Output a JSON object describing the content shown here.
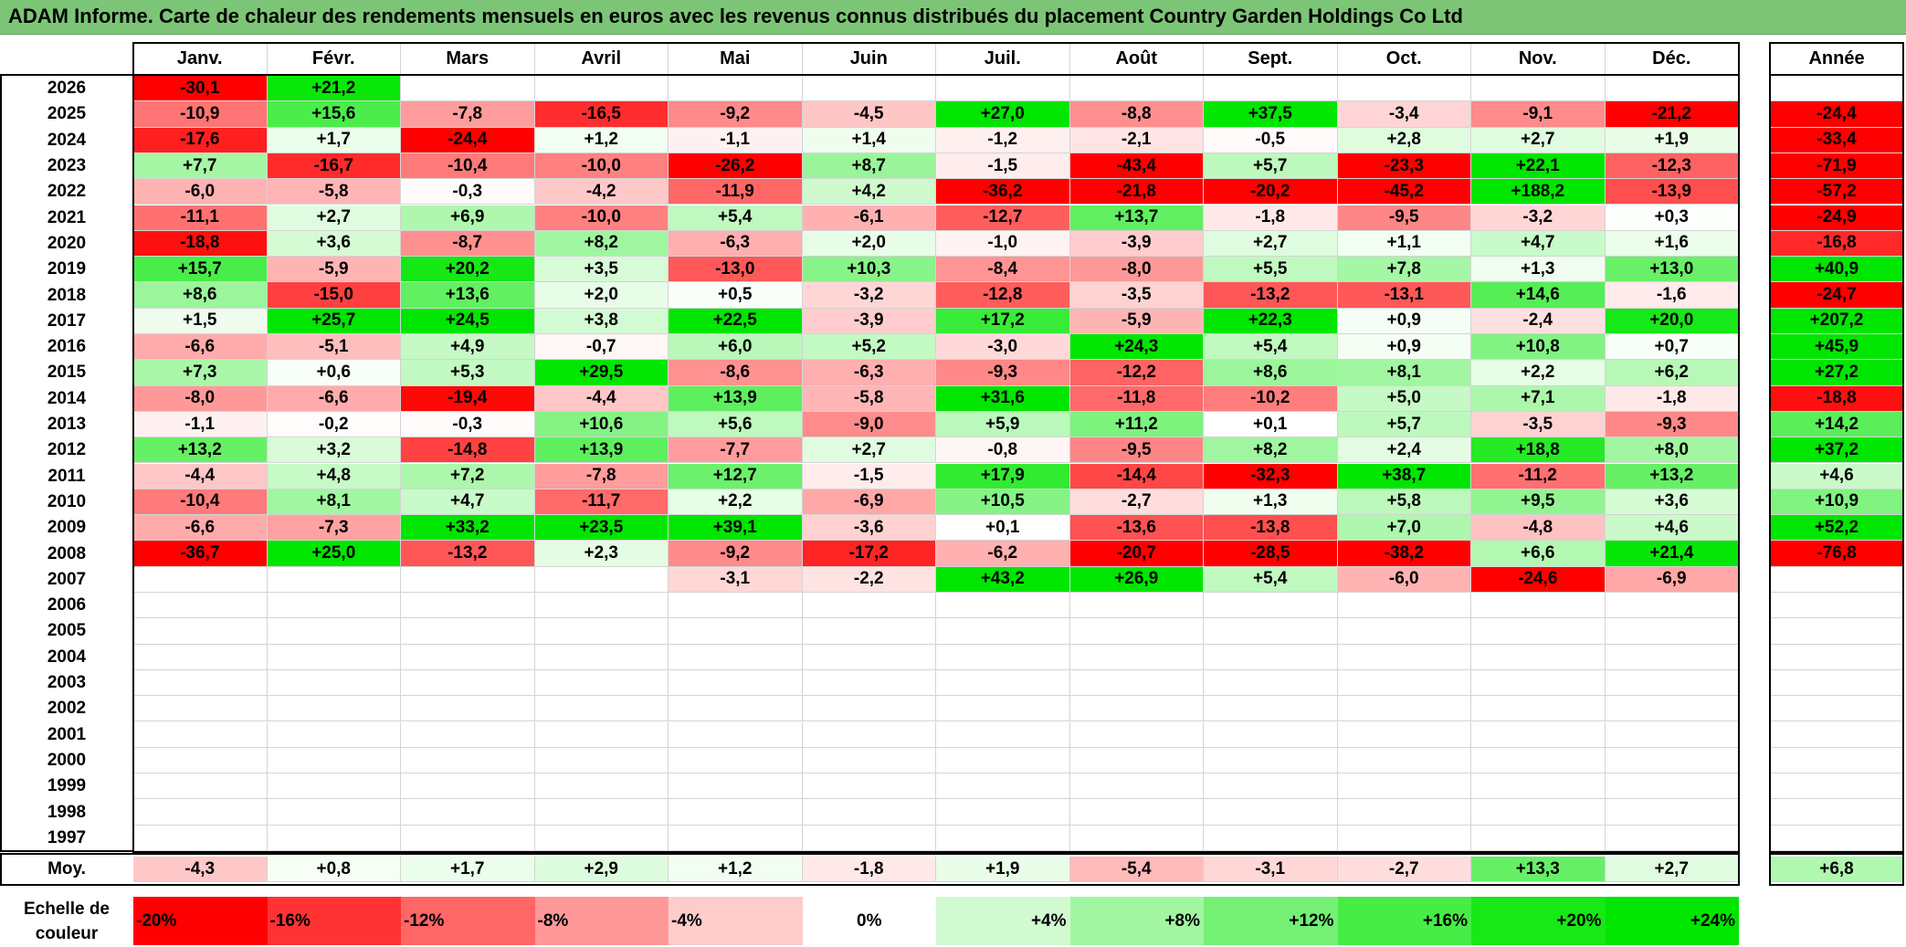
{
  "title": "ADAM Informe. Carte de chaleur des rendements mensuels en euros avec les revenus connus distribués du placement Country Garden Holdings Co Ltd",
  "colors": {
    "title_bg": "#7cc576",
    "neg_full": "#ff0000",
    "pos_full": "#00e600",
    "neutral": "#ffffff"
  },
  "chart_data": {
    "type": "heatmap",
    "months": [
      "Janv.",
      "Févr.",
      "Mars",
      "Avril",
      "Mai",
      "Juin",
      "Juil.",
      "Août",
      "Sept.",
      "Oct.",
      "Nov.",
      "Déc."
    ],
    "year_header": "Année",
    "avg_label": "Moy.",
    "years": [
      "2026",
      "2025",
      "2024",
      "2023",
      "2022",
      "2021",
      "2020",
      "2019",
      "2018",
      "2017",
      "2016",
      "2015",
      "2014",
      "2013",
      "2012",
      "2011",
      "2010",
      "2009",
      "2008",
      "2007",
      "2006",
      "2005",
      "2004",
      "2003",
      "2002",
      "2001",
      "2000",
      "1999",
      "1998",
      "1997"
    ],
    "rows": [
      [
        "-30,1",
        "+21,2",
        "",
        "",
        "",
        "",
        "",
        "",
        "",
        "",
        "",
        ""
      ],
      [
        "-10,9",
        "+15,6",
        "-7,8",
        "-16,5",
        "-9,2",
        "-4,5",
        "+27,0",
        "-8,8",
        "+37,5",
        "-3,4",
        "-9,1",
        "-21,2"
      ],
      [
        "-17,6",
        "+1,7",
        "-24,4",
        "+1,2",
        "-1,1",
        "+1,4",
        "-1,2",
        "-2,1",
        "-0,5",
        "+2,8",
        "+2,7",
        "+1,9"
      ],
      [
        "+7,7",
        "-16,7",
        "-10,4",
        "-10,0",
        "-26,2",
        "+8,7",
        "-1,5",
        "-43,4",
        "+5,7",
        "-23,3",
        "+22,1",
        "-12,3"
      ],
      [
        "-6,0",
        "-5,8",
        "-0,3",
        "-4,2",
        "-11,9",
        "+4,2",
        "-36,2",
        "-21,8",
        "-20,2",
        "-45,2",
        "+188,2",
        "-13,9"
      ],
      [
        "-11,1",
        "+2,7",
        "+6,9",
        "-10,0",
        "+5,4",
        "-6,1",
        "-12,7",
        "+13,7",
        "-1,8",
        "-9,5",
        "-3,2",
        "+0,3"
      ],
      [
        "-18,8",
        "+3,6",
        "-8,7",
        "+8,2",
        "-6,3",
        "+2,0",
        "-1,0",
        "-3,9",
        "+2,7",
        "+1,1",
        "+4,7",
        "+1,6"
      ],
      [
        "+15,7",
        "-5,9",
        "+20,2",
        "+3,5",
        "-13,0",
        "+10,3",
        "-8,4",
        "-8,0",
        "+5,5",
        "+7,8",
        "+1,3",
        "+13,0"
      ],
      [
        "+8,6",
        "-15,0",
        "+13,6",
        "+2,0",
        "+0,5",
        "-3,2",
        "-12,8",
        "-3,5",
        "-13,2",
        "-13,1",
        "+14,6",
        "-1,6"
      ],
      [
        "+1,5",
        "+25,7",
        "+24,5",
        "+3,8",
        "+22,5",
        "-3,9",
        "+17,2",
        "-5,9",
        "+22,3",
        "+0,9",
        "-2,4",
        "+20,0"
      ],
      [
        "-6,6",
        "-5,1",
        "+4,9",
        "-0,7",
        "+6,0",
        "+5,2",
        "-3,0",
        "+24,3",
        "+5,4",
        "+0,9",
        "+10,8",
        "+0,7"
      ],
      [
        "+7,3",
        "+0,6",
        "+5,3",
        "+29,5",
        "-8,6",
        "-6,3",
        "-9,3",
        "-12,2",
        "+8,6",
        "+8,1",
        "+2,2",
        "+6,2"
      ],
      [
        "-8,0",
        "-6,6",
        "-19,4",
        "-4,4",
        "+13,9",
        "-5,8",
        "+31,6",
        "-11,8",
        "-10,2",
        "+5,0",
        "+7,1",
        "-1,8"
      ],
      [
        "-1,1",
        "-0,2",
        "-0,3",
        "+10,6",
        "+5,6",
        "-9,0",
        "+5,9",
        "+11,2",
        "+0,1",
        "+5,7",
        "-3,5",
        "-9,3"
      ],
      [
        "+13,2",
        "+3,2",
        "-14,8",
        "+13,9",
        "-7,7",
        "+2,7",
        "-0,8",
        "-9,5",
        "+8,2",
        "+2,4",
        "+18,8",
        "+8,0"
      ],
      [
        "-4,4",
        "+4,8",
        "+7,2",
        "-7,8",
        "+12,7",
        "-1,5",
        "+17,9",
        "-14,4",
        "-32,3",
        "+38,7",
        "-11,2",
        "+13,2"
      ],
      [
        "-10,4",
        "+8,1",
        "+4,7",
        "-11,7",
        "+2,2",
        "-6,9",
        "+10,5",
        "-2,7",
        "+1,3",
        "+5,8",
        "+9,5",
        "+3,6"
      ],
      [
        "-6,6",
        "-7,3",
        "+33,2",
        "+23,5",
        "+39,1",
        "-3,6",
        "+0,1",
        "-13,6",
        "-13,8",
        "+7,0",
        "-4,8",
        "+4,6"
      ],
      [
        "-36,7",
        "+25,0",
        "-13,2",
        "+2,3",
        "-9,2",
        "-17,2",
        "-6,2",
        "-20,7",
        "-28,5",
        "-38,2",
        "+6,6",
        "+21,4"
      ],
      [
        "",
        "",
        "",
        "",
        "-3,1",
        "-2,2",
        "+43,2",
        "+26,9",
        "+5,4",
        "-6,0",
        "-24,6",
        "-6,9"
      ],
      [
        "",
        "",
        "",
        "",
        "",
        "",
        "",
        "",
        "",
        "",
        "",
        ""
      ],
      [
        "",
        "",
        "",
        "",
        "",
        "",
        "",
        "",
        "",
        "",
        "",
        ""
      ],
      [
        "",
        "",
        "",
        "",
        "",
        "",
        "",
        "",
        "",
        "",
        "",
        ""
      ],
      [
        "",
        "",
        "",
        "",
        "",
        "",
        "",
        "",
        "",
        "",
        "",
        ""
      ],
      [
        "",
        "",
        "",
        "",
        "",
        "",
        "",
        "",
        "",
        "",
        "",
        ""
      ],
      [
        "",
        "",
        "",
        "",
        "",
        "",
        "",
        "",
        "",
        "",
        "",
        ""
      ],
      [
        "",
        "",
        "",
        "",
        "",
        "",
        "",
        "",
        "",
        "",
        "",
        ""
      ],
      [
        "",
        "",
        "",
        "",
        "",
        "",
        "",
        "",
        "",
        "",
        "",
        ""
      ],
      [
        "",
        "",
        "",
        "",
        "",
        "",
        "",
        "",
        "",
        "",
        "",
        ""
      ],
      [
        "",
        "",
        "",
        "",
        "",
        "",
        "",
        "",
        "",
        "",
        "",
        ""
      ]
    ],
    "annual": [
      "",
      "-24,4",
      "-33,4",
      "-71,9",
      "-57,2",
      "-24,9",
      "-16,8",
      "+40,9",
      "-24,7",
      "+207,2",
      "+45,9",
      "+27,2",
      "-18,8",
      "+14,2",
      "+37,2",
      "+4,6",
      "+10,9",
      "+52,2",
      "-76,8",
      "",
      "",
      "",
      "",
      "",
      "",
      "",
      "",
      "",
      "",
      ""
    ],
    "averages": [
      "-4,3",
      "+0,8",
      "+1,7",
      "+2,9",
      "+1,2",
      "-1,8",
      "+1,9",
      "-5,4",
      "-3,1",
      "-2,7",
      "+13,3",
      "+2,7"
    ],
    "average_annual": "+6,8",
    "scale_label": "Echelle de couleur",
    "scale": [
      "-20%",
      "-16%",
      "-12%",
      "-8%",
      "-4%",
      "0%",
      "+4%",
      "+8%",
      "+12%",
      "+16%",
      "+20%",
      "+24%"
    ],
    "scale_values": [
      -20,
      -16,
      -12,
      -8,
      -4,
      0,
      4,
      8,
      12,
      16,
      20,
      24
    ]
  }
}
